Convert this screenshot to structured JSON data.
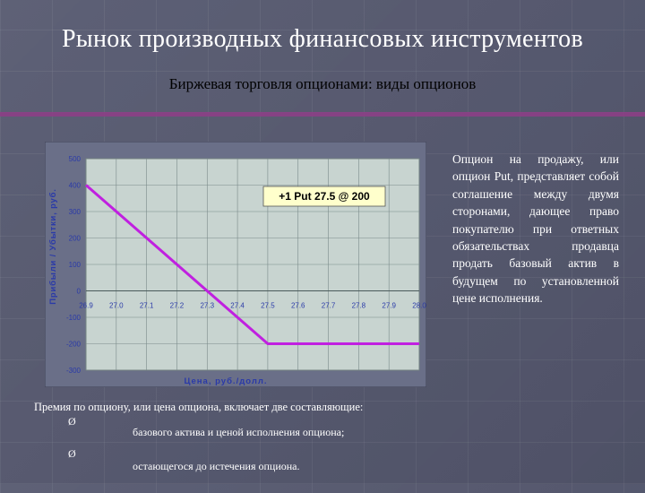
{
  "slide": {
    "title": "Рынок производных финансовых инструментов",
    "subtitle": "Биржевая торговля опционами: виды опционов",
    "side_text": "Опцион на продажу, или опцион Put, представляет собой соглашение между двумя сторонами, дающее право покупателю при ответных обязательствах продавца продать базовый актив в будущем по установленной цене исполнения.",
    "premium_text": "Премия по опциону, или цена опциона, включает две составляющие:",
    "bullets": [
      {
        "mark": "Ø",
        "text": "базового актива и ценой исполнения опциона;"
      },
      {
        "mark": "Ø",
        "text": "остающегося до истечения опциона."
      }
    ]
  },
  "colors": {
    "payoff_line": "#c020e0",
    "chart_bg": "#c8d4d0",
    "grid": "#7a8a8a",
    "axis_label": "#2a3aa8",
    "annotation_bg": "#ffffcc"
  },
  "chart_data": {
    "type": "line",
    "title": "",
    "annotation": "+1 Put 27.5 @ 200",
    "xlabel": "Цена, руб./долл.",
    "ylabel": "Прибыли / Убытки, руб.",
    "x_ticks": [
      "26.9",
      "27.0",
      "27.1",
      "27.2",
      "27.3",
      "27.4",
      "27.5",
      "27.6",
      "27.7",
      "27.8",
      "27.9",
      "28.0"
    ],
    "y_ticks": [
      "500",
      "400",
      "300",
      "200",
      "100",
      "0",
      "-100",
      "-200",
      "-300"
    ],
    "xlim": [
      26.9,
      28.0
    ],
    "ylim": [
      -300,
      500
    ],
    "grid": true,
    "series": [
      {
        "x": [
          26.9,
          27.5,
          28.0
        ],
        "y": [
          400,
          -200,
          -200
        ]
      }
    ]
  }
}
